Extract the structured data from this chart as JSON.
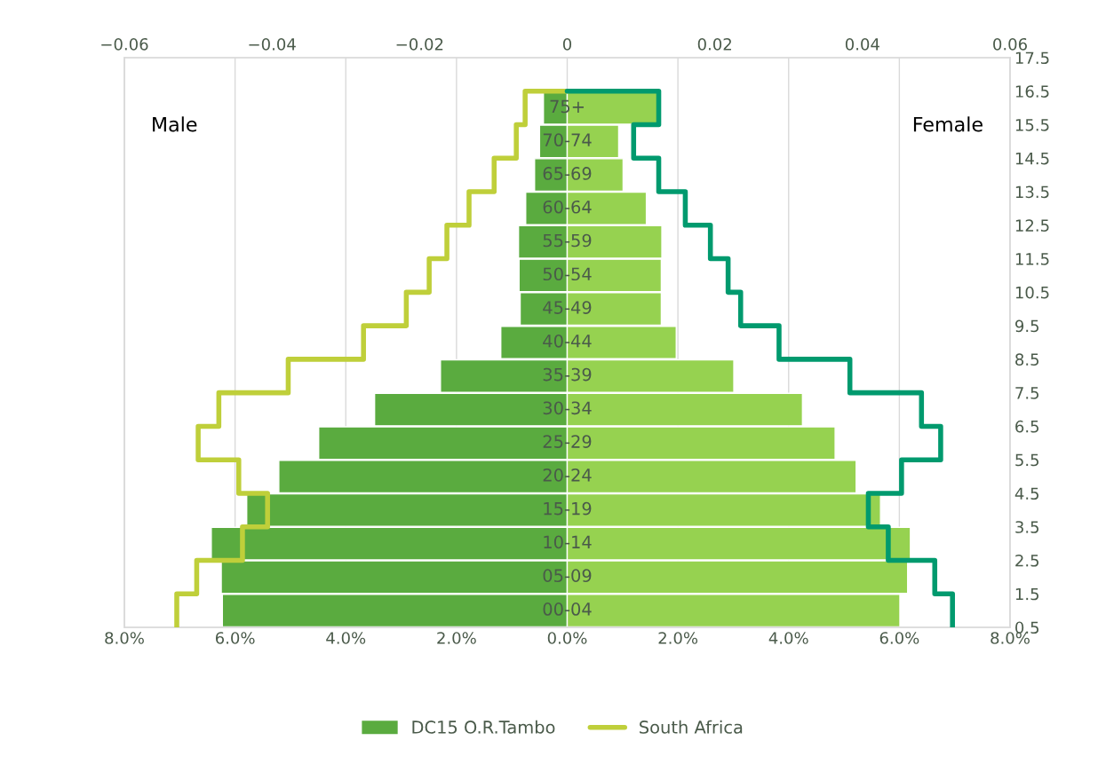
{
  "chart_data": {
    "type": "bar",
    "orientation": "horizontal",
    "categories": [
      "75+",
      "70-74",
      "65-69",
      "60-64",
      "55-59",
      "50-54",
      "45-49",
      "40-44",
      "35-39",
      "30-34",
      "25-29",
      "20-24",
      "15-19",
      "10-14",
      "05-09",
      "00-04"
    ],
    "series": [
      {
        "name": "DC15 O.R.Tambo",
        "color": "#5aab3f",
        "values": [
          -0.43,
          -0.5,
          -0.59,
          -0.75,
          -0.88,
          -0.87,
          -0.85,
          -1.2,
          -2.29,
          -3.48,
          -4.49,
          -5.21,
          -5.79,
          -6.43,
          -6.25,
          -6.23
        ]
      },
      {
        "color": "#96d250",
        "values": [
          1.65,
          0.93,
          1.01,
          1.43,
          1.71,
          1.7,
          1.7,
          1.97,
          3.01,
          4.25,
          4.84,
          5.22,
          5.66,
          6.2,
          6.15,
          6.01
        ]
      },
      {
        "name": "South Africa",
        "type": "step",
        "axis": "x2",
        "color": "#bfcf3a",
        "values": [
          -0.0057,
          -0.0069,
          -0.0099,
          -0.0133,
          -0.0163,
          -0.0187,
          -0.0218,
          -0.0276,
          -0.0378,
          -0.0472,
          -0.05,
          -0.0445,
          -0.0406,
          -0.044,
          -0.0502,
          -0.0529
        ]
      },
      {
        "type": "step",
        "axis": "x2",
        "color": "#009a6e",
        "values": [
          0.0124,
          0.009,
          0.0124,
          0.016,
          0.0194,
          0.0218,
          0.0235,
          0.0287,
          0.0383,
          0.048,
          0.0506,
          0.0453,
          0.0408,
          0.0435,
          0.0498,
          0.0522
        ]
      }
    ],
    "xlim": [
      -8,
      8
    ],
    "xticks": [
      {
        "value": -8,
        "label": "8.0%"
      },
      {
        "value": -6,
        "label": "6.0%"
      },
      {
        "value": -4,
        "label": "4.0%"
      },
      {
        "value": -2,
        "label": "2.0%"
      },
      {
        "value": 0,
        "label": "0.0%"
      },
      {
        "value": 2,
        "label": "2.0%"
      },
      {
        "value": 4,
        "label": "4.0%"
      },
      {
        "value": 6,
        "label": "6.0%"
      },
      {
        "value": 8,
        "label": "8.0%"
      }
    ],
    "x2lim": [
      -0.06,
      0.06
    ],
    "x2ticks": [
      {
        "value": -0.06,
        "label": "−0.06"
      },
      {
        "value": -0.04,
        "label": "−0.04"
      },
      {
        "value": -0.02,
        "label": "−0.02"
      },
      0,
      0.02,
      0.04,
      0.06
    ],
    "y2lim": [
      0.5,
      17.5
    ],
    "y2ticks": [
      0.5,
      1.5,
      2.5,
      3.5,
      4.5,
      5.5,
      6.5,
      7.5,
      8.5,
      9.5,
      10.5,
      11.5,
      12.5,
      13.5,
      14.5,
      15.5,
      16.5,
      17.5
    ],
    "annotations": [
      "Male",
      "Female"
    ],
    "stacked": true,
    "grid": "x",
    "legend": "bottom"
  }
}
